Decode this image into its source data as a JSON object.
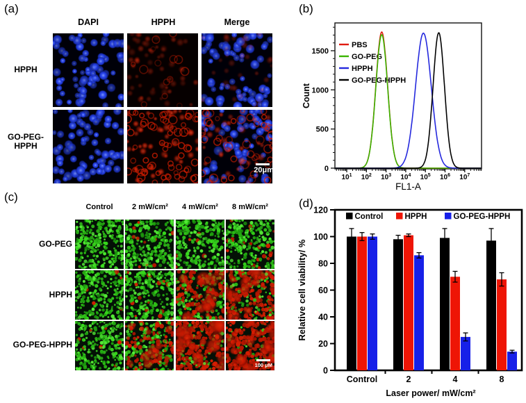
{
  "panel_a": {
    "label": "(a)",
    "column_headers": [
      "DAPI",
      "HPPH",
      "Merge"
    ],
    "rows": [
      {
        "label_lines": [
          "HPPH"
        ],
        "cells": [
          "dapi",
          "hpph-faint",
          "merge-faint"
        ]
      },
      {
        "label_lines": [
          "GO-PEG-",
          "HPPH"
        ],
        "cells": [
          "dapi",
          "hpph-bright",
          "merge-bright"
        ]
      }
    ],
    "scale_bar_label": "20μm"
  },
  "panel_b": {
    "label": "(b)"
  },
  "panel_c": {
    "label": "(c)",
    "column_headers": [
      "Control",
      "2 mW/cm²",
      "4 mW/cm²",
      "8 mW/cm²"
    ],
    "rows": [
      {
        "label": "GO-PEG",
        "red_fractions": [
          0.01,
          0.02,
          0.04,
          0.06
        ]
      },
      {
        "label": "HPPH",
        "red_fractions": [
          0.02,
          0.06,
          0.45,
          0.62
        ]
      },
      {
        "label": "GO-PEG-HPPH",
        "red_fractions": [
          0.03,
          0.35,
          0.78,
          0.88
        ]
      }
    ],
    "scale_bar_label": "100 μM"
  },
  "panel_d": {
    "label": "(d)"
  },
  "chart_data": [
    {
      "id": "panel_b_flow_histogram",
      "type": "line",
      "title": "",
      "xlabel": "FL1-A",
      "ylabel": "Count",
      "x_scale": "log10",
      "x_decades": [
        1,
        2,
        3,
        4,
        5,
        6,
        7
      ],
      "xlim_log10": [
        0.42,
        7.85
      ],
      "ylim": [
        0,
        1850
      ],
      "yticks": [
        0,
        500,
        1000,
        1500
      ],
      "legend_position": "upper-left-inside",
      "series": [
        {
          "name": "PBS",
          "color": "#e01b10",
          "peak_log10": 2.78,
          "sigma_log10": 0.3,
          "peak_count": 1740
        },
        {
          "name": "GO-PEG",
          "color": "#3ab400",
          "peak_log10": 2.78,
          "sigma_log10": 0.3,
          "peak_count": 1705
        },
        {
          "name": "HPPH",
          "color": "#2428dd",
          "peak_log10": 4.9,
          "sigma_log10": 0.4,
          "peak_count": 1725
        },
        {
          "name": "GO-PEG-HPPH",
          "color": "#000000",
          "peak_log10": 5.68,
          "sigma_log10": 0.29,
          "peak_count": 1730
        }
      ]
    },
    {
      "id": "panel_d_viability_bars",
      "type": "bar",
      "title": "",
      "categories": [
        "Control",
        "2",
        "4",
        "8"
      ],
      "xlabel": "Laser power/ mW/cm²",
      "ylabel": "Relative cell viability/ %",
      "ylim": [
        0,
        120
      ],
      "yticks": [
        0,
        20,
        40,
        60,
        80,
        100,
        120
      ],
      "legend_position": "top-inside",
      "series": [
        {
          "name": "Control",
          "color": "#000000",
          "values": [
            100,
            98,
            99,
            97
          ],
          "errors": [
            6,
            3,
            7,
            9
          ]
        },
        {
          "name": "HPPH",
          "color": "#ee1505",
          "values": [
            100,
            101,
            70,
            68
          ],
          "errors": [
            3,
            1,
            4,
            5
          ]
        },
        {
          "name": "GO-PEG-HPPH",
          "color": "#1720e8",
          "values": [
            100,
            86,
            25,
            14
          ],
          "errors": [
            2,
            2,
            3,
            1
          ]
        }
      ]
    }
  ],
  "colors": {
    "dapi_blue": "#2f4bf0",
    "hpph_red": "#cc1c00",
    "live_green": "#37d91c",
    "dead_red": "#d61e02"
  }
}
